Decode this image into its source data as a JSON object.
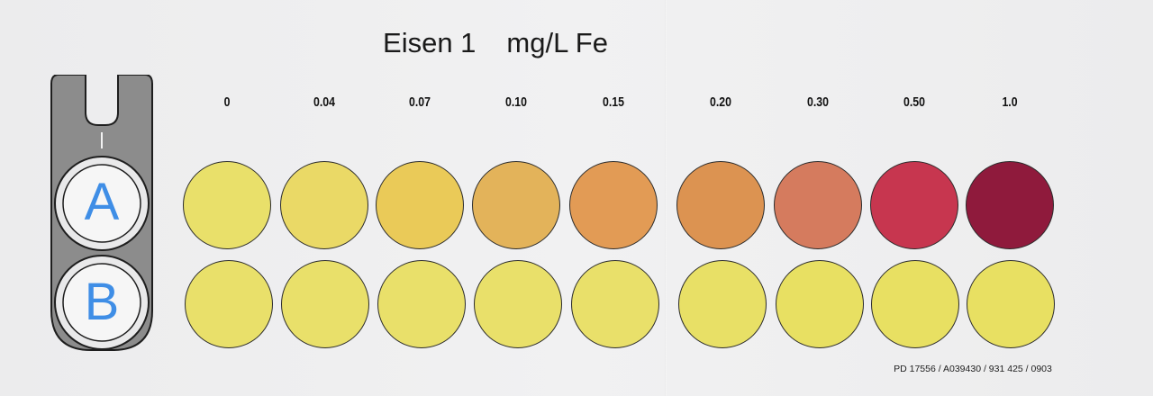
{
  "title": {
    "name": "Eisen 1",
    "unit": "mg/L Fe"
  },
  "holder": {
    "slot_a": "A",
    "slot_b": "B"
  },
  "concentrations": [
    "0",
    "0.04",
    "0.07",
    "0.10",
    "0.15",
    "0.20",
    "0.30",
    "0.50",
    "1.0"
  ],
  "row_a_colors": [
    "#e9e06a",
    "#ead966",
    "#eaca58",
    "#e3b35a",
    "#e29b55",
    "#dc9351",
    "#d57b5e",
    "#c7364f",
    "#8f1a3c"
  ],
  "row_b_colors": [
    "#e9e06a",
    "#e9e06a",
    "#e9e06a",
    "#e9e06a",
    "#e9e06a",
    "#e8e066",
    "#e8e062",
    "#e8e062",
    "#e8e062"
  ],
  "footer_code": "PD 17556 / A039430 / 931 425 / 0903"
}
